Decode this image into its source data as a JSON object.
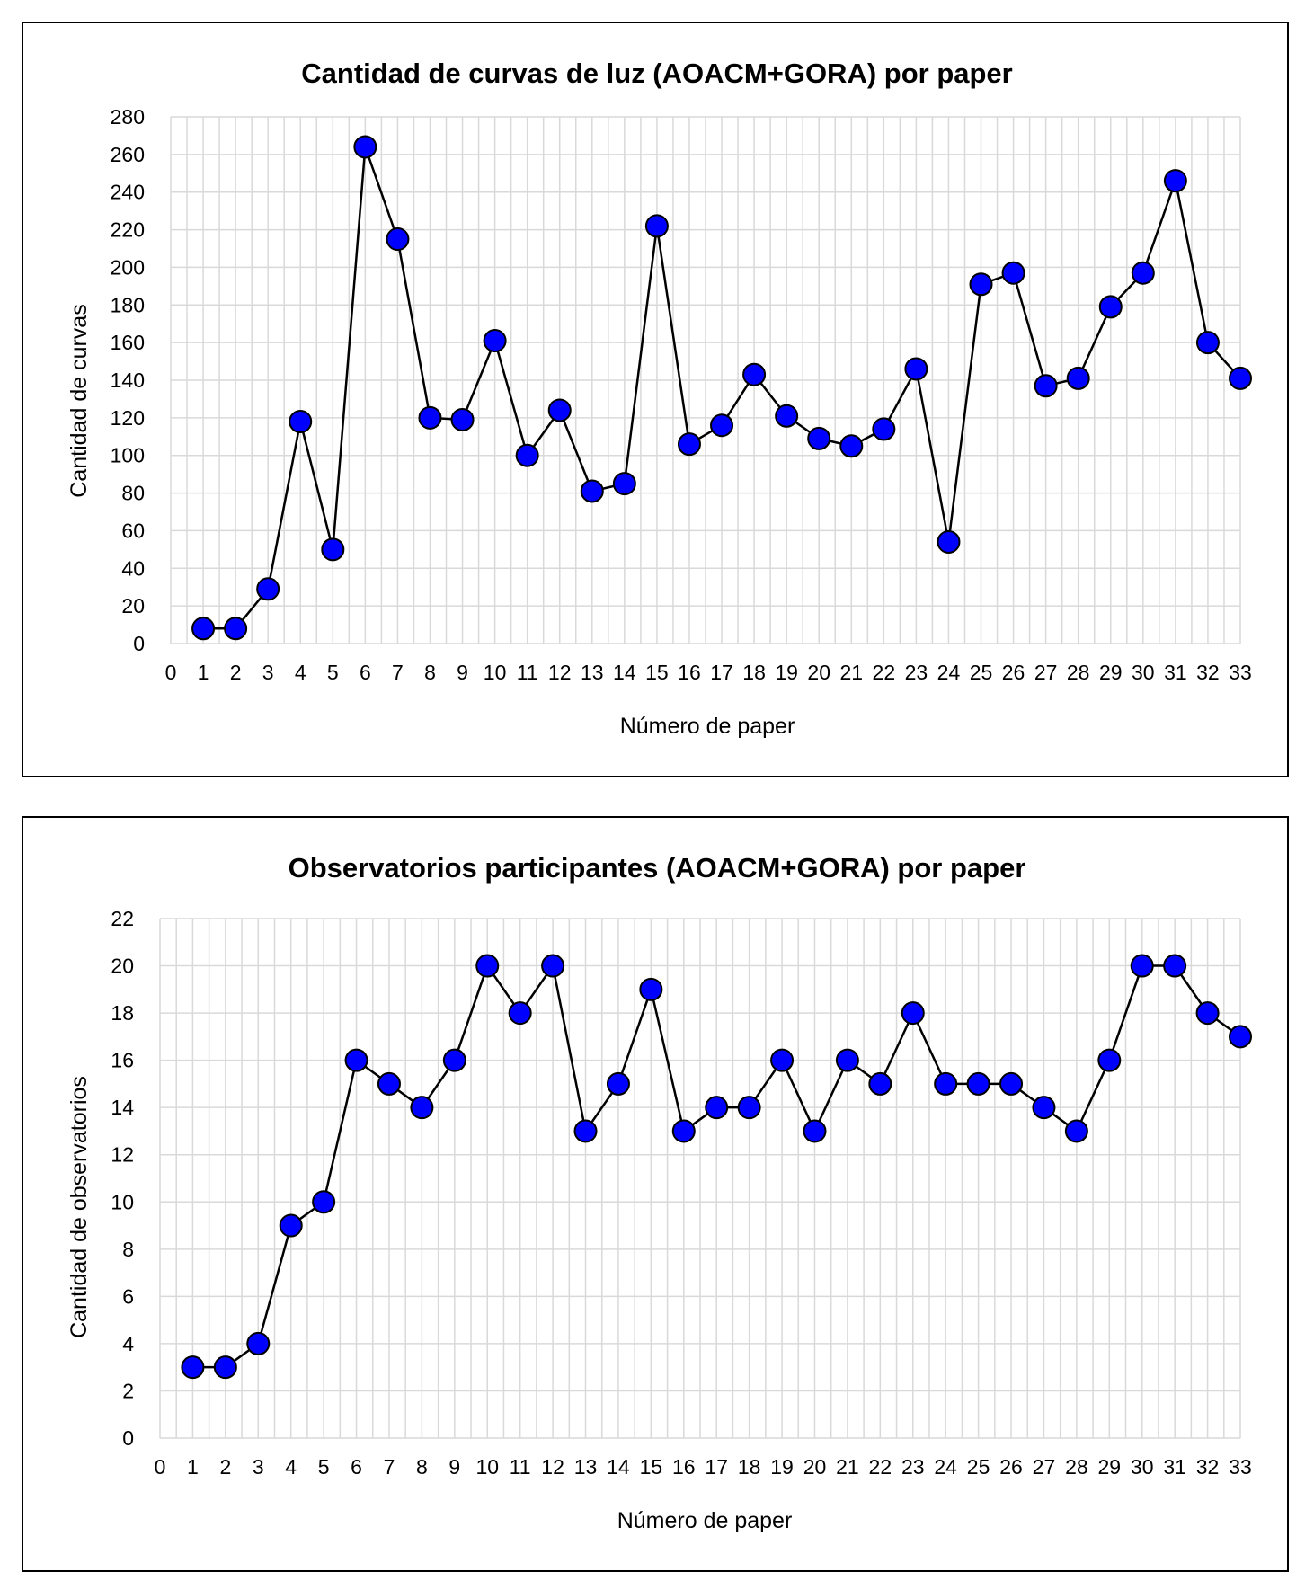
{
  "chart_data": [
    {
      "type": "line",
      "title": "Cantidad de curvas de luz (AOACM+GORA) por paper",
      "xlabel": "Número de paper",
      "ylabel": "Cantidad de curvas",
      "xlim": [
        0,
        33
      ],
      "ylim": [
        0,
        280
      ],
      "ystep": 20,
      "x": [
        1,
        2,
        3,
        4,
        5,
        6,
        7,
        8,
        9,
        10,
        11,
        12,
        13,
        14,
        15,
        16,
        17,
        18,
        19,
        20,
        21,
        22,
        23,
        24,
        25,
        26,
        27,
        28,
        29,
        30,
        31,
        32,
        33
      ],
      "series": [
        {
          "values": [
            8,
            8,
            29,
            118,
            50,
            264,
            215,
            120,
            119,
            161,
            100,
            124,
            81,
            85,
            222,
            106,
            116,
            143,
            121,
            109,
            105,
            114,
            146,
            54,
            191,
            197,
            137,
            141,
            179,
            197,
            246,
            160,
            141
          ]
        }
      ],
      "grid": true,
      "marker_color": "#0000ff",
      "line_color": "#000000"
    },
    {
      "type": "line",
      "title": "Observatorios participantes (AOACM+GORA) por paper",
      "xlabel": "Número de paper",
      "ylabel": "Cantidad de observatorios",
      "xlim": [
        0,
        33
      ],
      "ylim": [
        0,
        22
      ],
      "ystep": 2,
      "x": [
        1,
        2,
        3,
        4,
        5,
        6,
        7,
        8,
        9,
        10,
        11,
        12,
        13,
        14,
        15,
        16,
        17,
        18,
        19,
        20,
        21,
        22,
        23,
        24,
        25,
        26,
        27,
        28,
        29,
        30,
        31,
        32,
        33
      ],
      "series": [
        {
          "values": [
            3,
            3,
            4,
            9,
            10,
            16,
            15,
            14,
            16,
            20,
            18,
            20,
            13,
            15,
            19,
            13,
            14,
            14,
            16,
            13,
            16,
            15,
            18,
            15,
            15,
            15,
            14,
            13,
            16,
            20,
            20,
            18,
            17
          ]
        }
      ],
      "grid": true,
      "marker_color": "#0000ff",
      "line_color": "#000000"
    }
  ]
}
